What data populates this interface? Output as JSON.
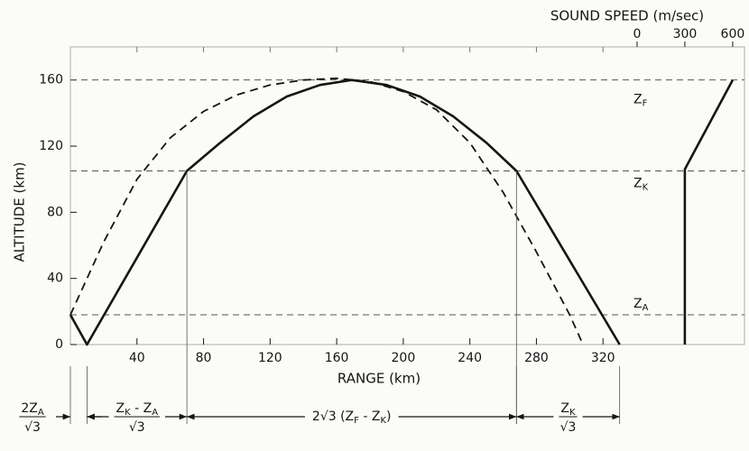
{
  "chart_data": {
    "type": "line",
    "xlabel": "RANGE (km)",
    "ylabel": "ALTITUDE (km)",
    "x2label": "SOUND SPEED (m/sec)",
    "xlim": [
      0,
      405
    ],
    "xticks": [
      40,
      80,
      120,
      160,
      200,
      240,
      280,
      320
    ],
    "ylim": [
      0,
      180
    ],
    "yticks": [
      0,
      40,
      80,
      120,
      160
    ],
    "x2lim": [
      -3555,
      674
    ],
    "x2ticks": [
      0,
      300,
      600
    ],
    "color": "#151515",
    "series": [
      {
        "style": "solid",
        "x": [
          0,
          10,
          70,
          90,
          110,
          130,
          150,
          169,
          190,
          210,
          230,
          250,
          268,
          330
        ],
        "values": [
          18,
          0,
          105,
          122,
          138,
          150,
          157,
          160,
          157,
          150,
          138,
          122,
          105,
          0
        ]
      },
      {
        "style": "dashed",
        "x": [
          0,
          20,
          40,
          60,
          80,
          100,
          120,
          140,
          160,
          180,
          200,
          220,
          240,
          260,
          280,
          300,
          308
        ],
        "values": [
          18,
          62,
          100,
          125,
          141,
          151,
          157,
          160,
          161,
          159,
          153,
          142,
          122,
          92,
          56,
          18,
          0
        ]
      },
      {
        "style": "solid",
        "axis": "x2",
        "x": [
          300,
          300,
          600
        ],
        "values": [
          0,
          106,
          160
        ]
      }
    ],
    "reference_lines": [
      {
        "value": 160,
        "label": "Z",
        "sub": "F"
      },
      {
        "value": 105,
        "label": "Z",
        "sub": "K"
      },
      {
        "value": 18,
        "label": "Z",
        "sub": "A"
      }
    ],
    "segments": [
      {
        "from": 0,
        "to": 10,
        "num": [
          {
            "text": "2Z"
          },
          {
            "sub": "A"
          }
        ],
        "den": "√3"
      },
      {
        "from": 10,
        "to": 70,
        "num": [
          {
            "text": "Z"
          },
          {
            "sub": "K"
          },
          {
            "text": " - Z"
          },
          {
            "sub": "A"
          }
        ],
        "den": "√3"
      },
      {
        "from": 70,
        "to": 268,
        "num": [
          {
            "text": "2√3 (Z"
          },
          {
            "sub": "F"
          },
          {
            "text": " - Z"
          },
          {
            "sub": "K"
          },
          {
            "text": ")"
          }
        ]
      },
      {
        "from": 268,
        "to": 330,
        "num": [
          {
            "text": "Z"
          },
          {
            "sub": "K"
          }
        ],
        "den": "√3"
      }
    ]
  }
}
